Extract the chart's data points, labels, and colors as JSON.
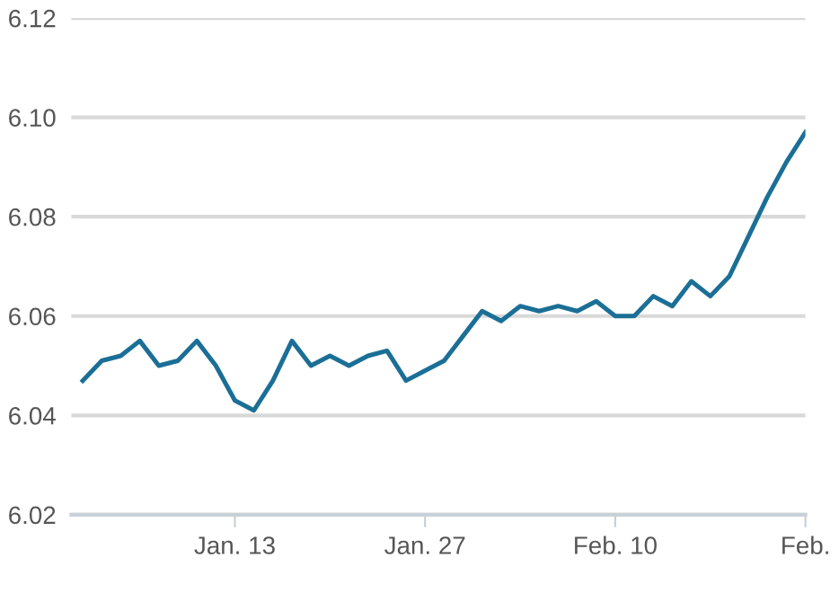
{
  "chart_data": {
    "type": "line",
    "categories": [
      null,
      null,
      null,
      null,
      null,
      null,
      null,
      null,
      "Jan. 13",
      null,
      null,
      null,
      null,
      null,
      null,
      null,
      null,
      null,
      "Jan. 27",
      null,
      null,
      null,
      null,
      null,
      null,
      null,
      null,
      null,
      "Feb. 10",
      null,
      null,
      null,
      null,
      null,
      null,
      null,
      null,
      null,
      "Feb."
    ],
    "series": [
      {
        "color": "#1b6f96",
        "values": [
          6.047,
          6.051,
          6.052,
          6.055,
          6.05,
          6.051,
          6.055,
          6.05,
          6.043,
          6.041,
          6.047,
          6.055,
          6.05,
          6.052,
          6.05,
          6.052,
          6.053,
          6.047,
          6.049,
          6.051,
          6.056,
          6.061,
          6.059,
          6.062,
          6.061,
          6.062,
          6.061,
          6.063,
          6.06,
          6.06,
          6.064,
          6.062,
          6.067,
          6.064,
          6.068,
          6.076,
          6.084,
          6.091,
          6.097
        ]
      }
    ],
    "ylim": [
      6.02,
      6.12
    ],
    "yticks": [
      6.02,
      6.04,
      6.06,
      6.08,
      {
        "value": 6.1,
        "label": "6.10"
      },
      6.12
    ],
    "grid": "y",
    "marker": "none",
    "line_style": "solid"
  }
}
